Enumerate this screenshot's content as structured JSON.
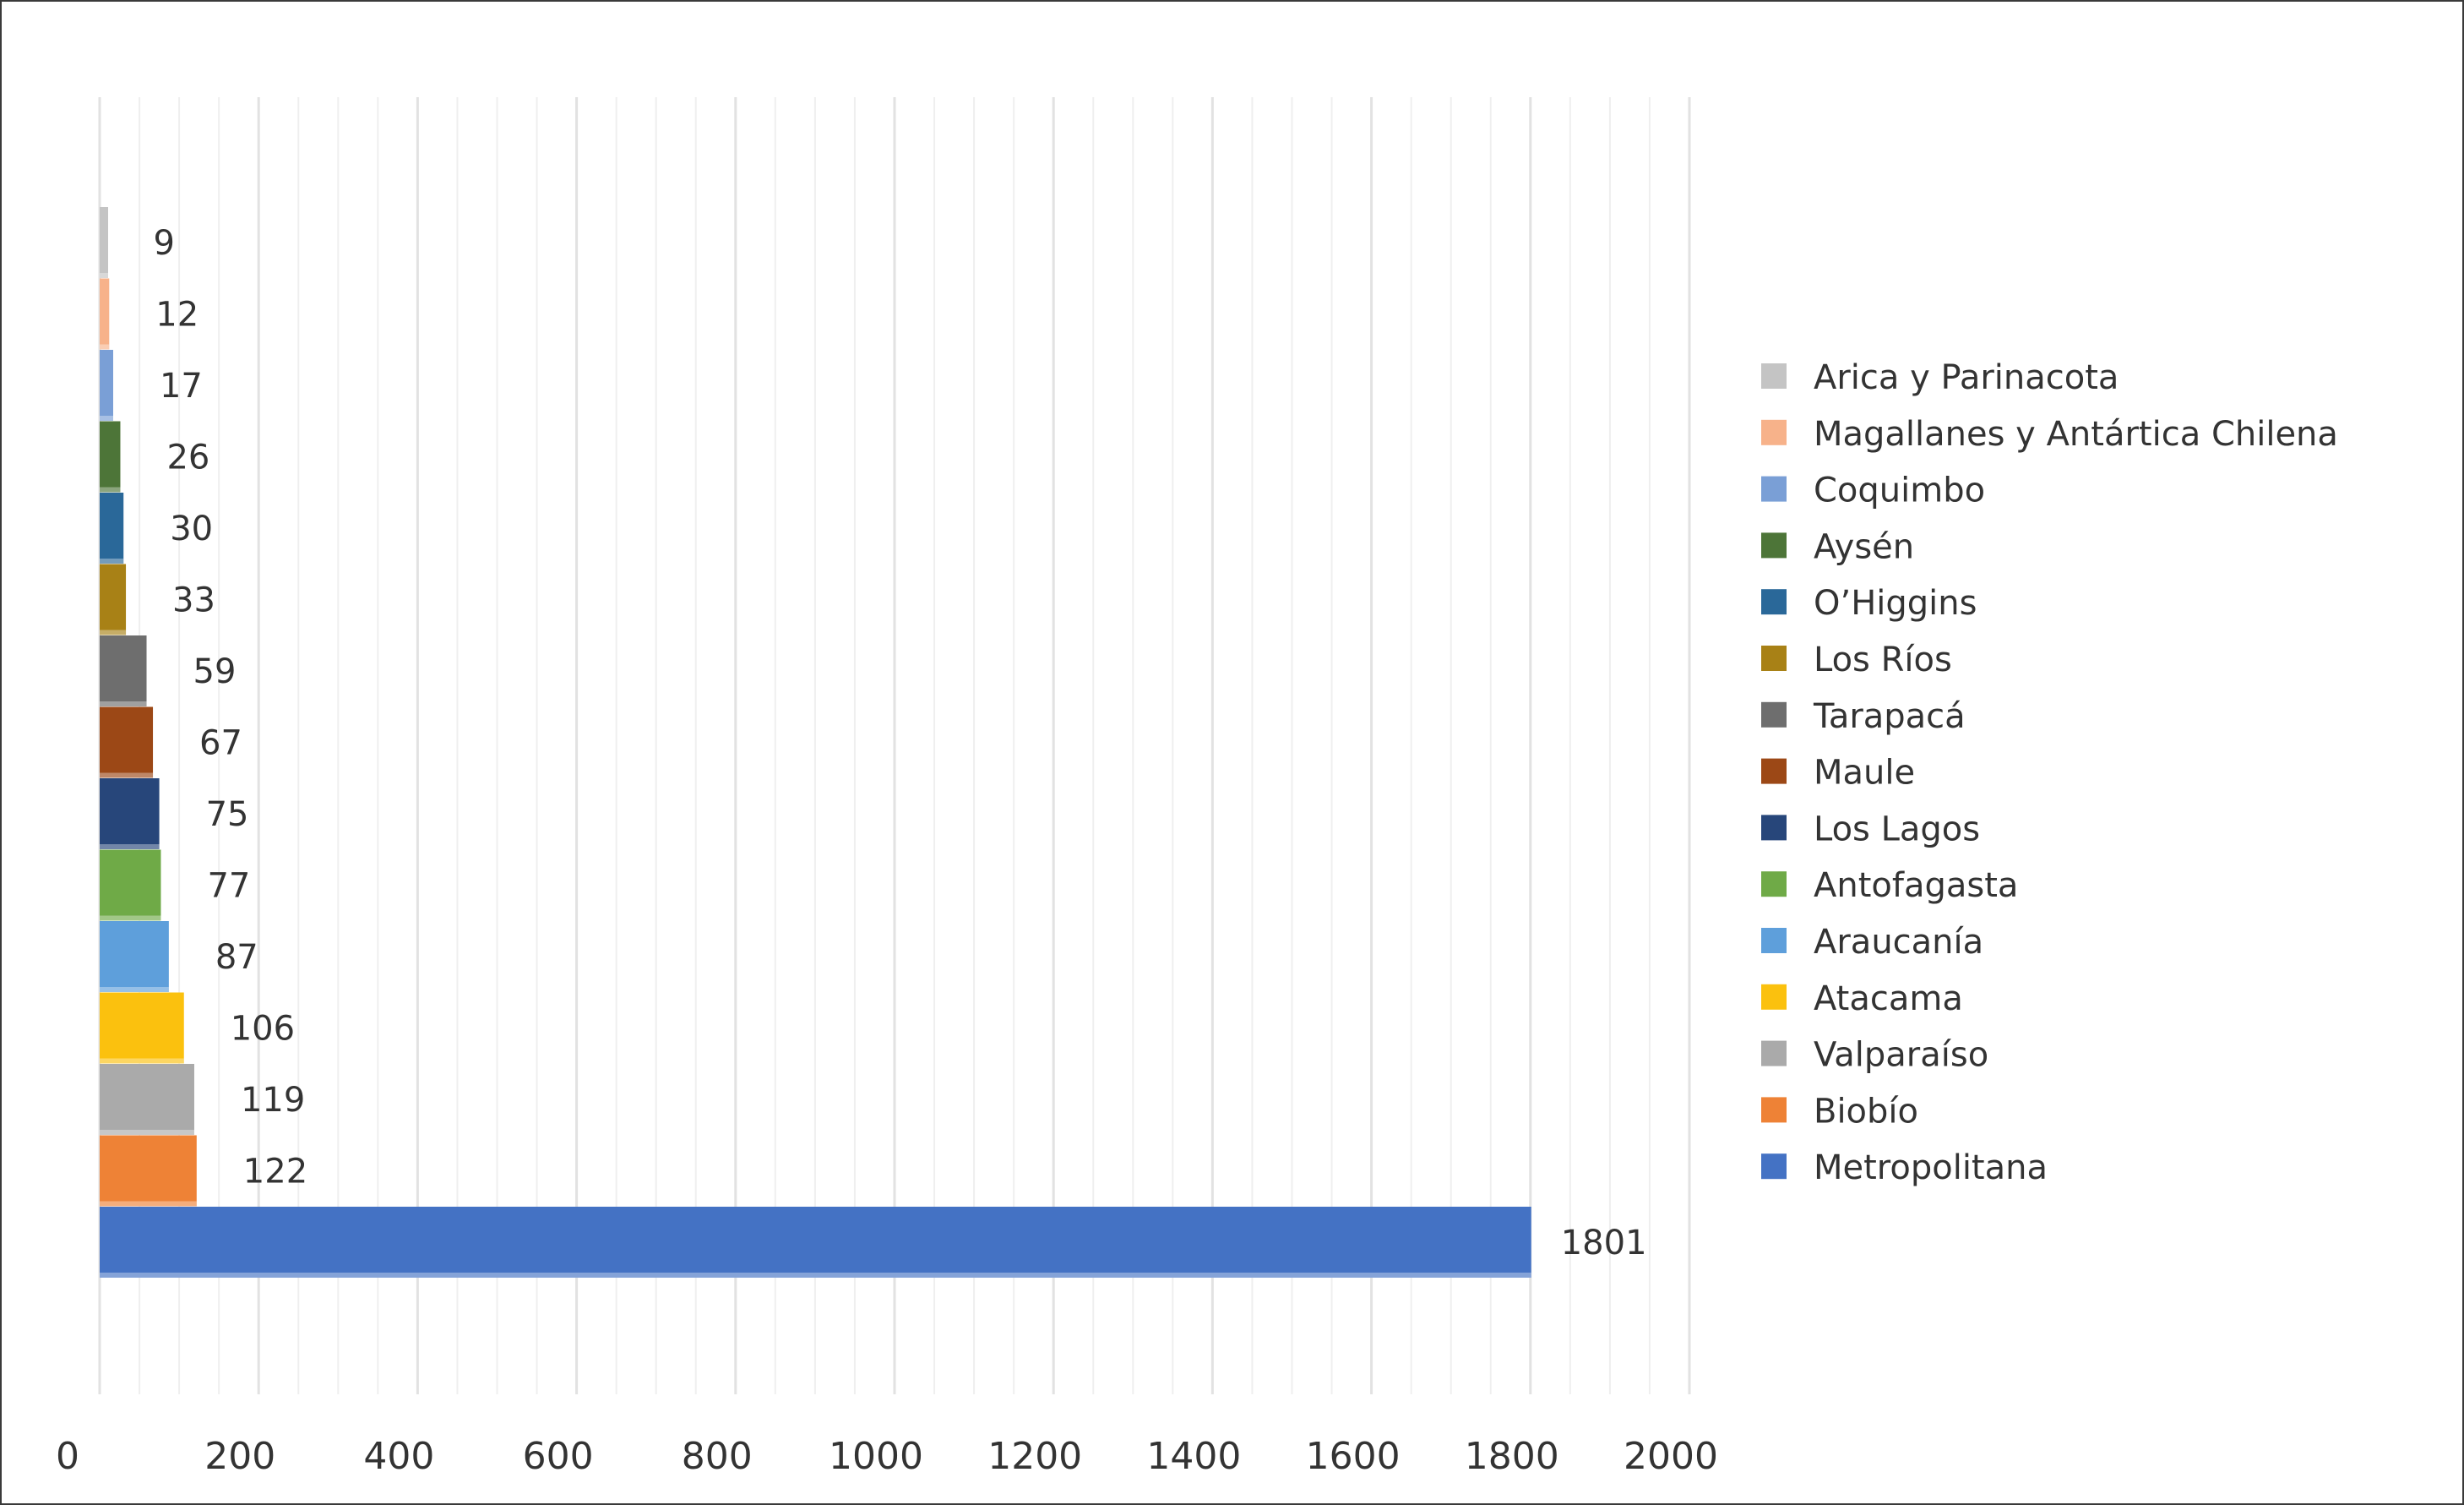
{
  "chart_data": {
    "type": "bar",
    "orientation": "horizontal",
    "title": "",
    "xlabel": "",
    "ylabel": "",
    "xlim": [
      0,
      2000
    ],
    "x_ticks": [
      0,
      200,
      400,
      600,
      800,
      1000,
      1200,
      1400,
      1600,
      1800,
      2000
    ],
    "grid": true,
    "legend": "right",
    "series": [
      {
        "name": "Arica y Parinacota",
        "value": 9,
        "color": "#c4c4c4"
      },
      {
        "name": "Magallanes y Antártica Chilena",
        "value": 12,
        "color": "#f7b28a"
      },
      {
        "name": "Coquimbo",
        "value": 17,
        "color": "#7a9fd6"
      },
      {
        "name": "Aysén",
        "value": 26,
        "color": "#4d7538"
      },
      {
        "name": "O’Higgins",
        "value": 30,
        "color": "#2a6899"
      },
      {
        "name": "Los Ríos",
        "value": 33,
        "color": "#a88116"
      },
      {
        "name": "Tarapacá",
        "value": 59,
        "color": "#6e6e6e"
      },
      {
        "name": "Maule",
        "value": 67,
        "color": "#9c4816"
      },
      {
        "name": "Los Lagos",
        "value": 75,
        "color": "#27467a"
      },
      {
        "name": "Antofagasta",
        "value": 77,
        "color": "#6faa47"
      },
      {
        "name": "Araucanía",
        "value": 87,
        "color": "#5e9fdb"
      },
      {
        "name": "Atacama",
        "value": 106,
        "color": "#fbc10e"
      },
      {
        "name": "Valparaíso",
        "value": 119,
        "color": "#aaaaaa"
      },
      {
        "name": "Biobío",
        "value": 122,
        "color": "#ee8236"
      },
      {
        "name": "Metropolitana",
        "value": 1801,
        "color": "#4472c4"
      }
    ]
  }
}
